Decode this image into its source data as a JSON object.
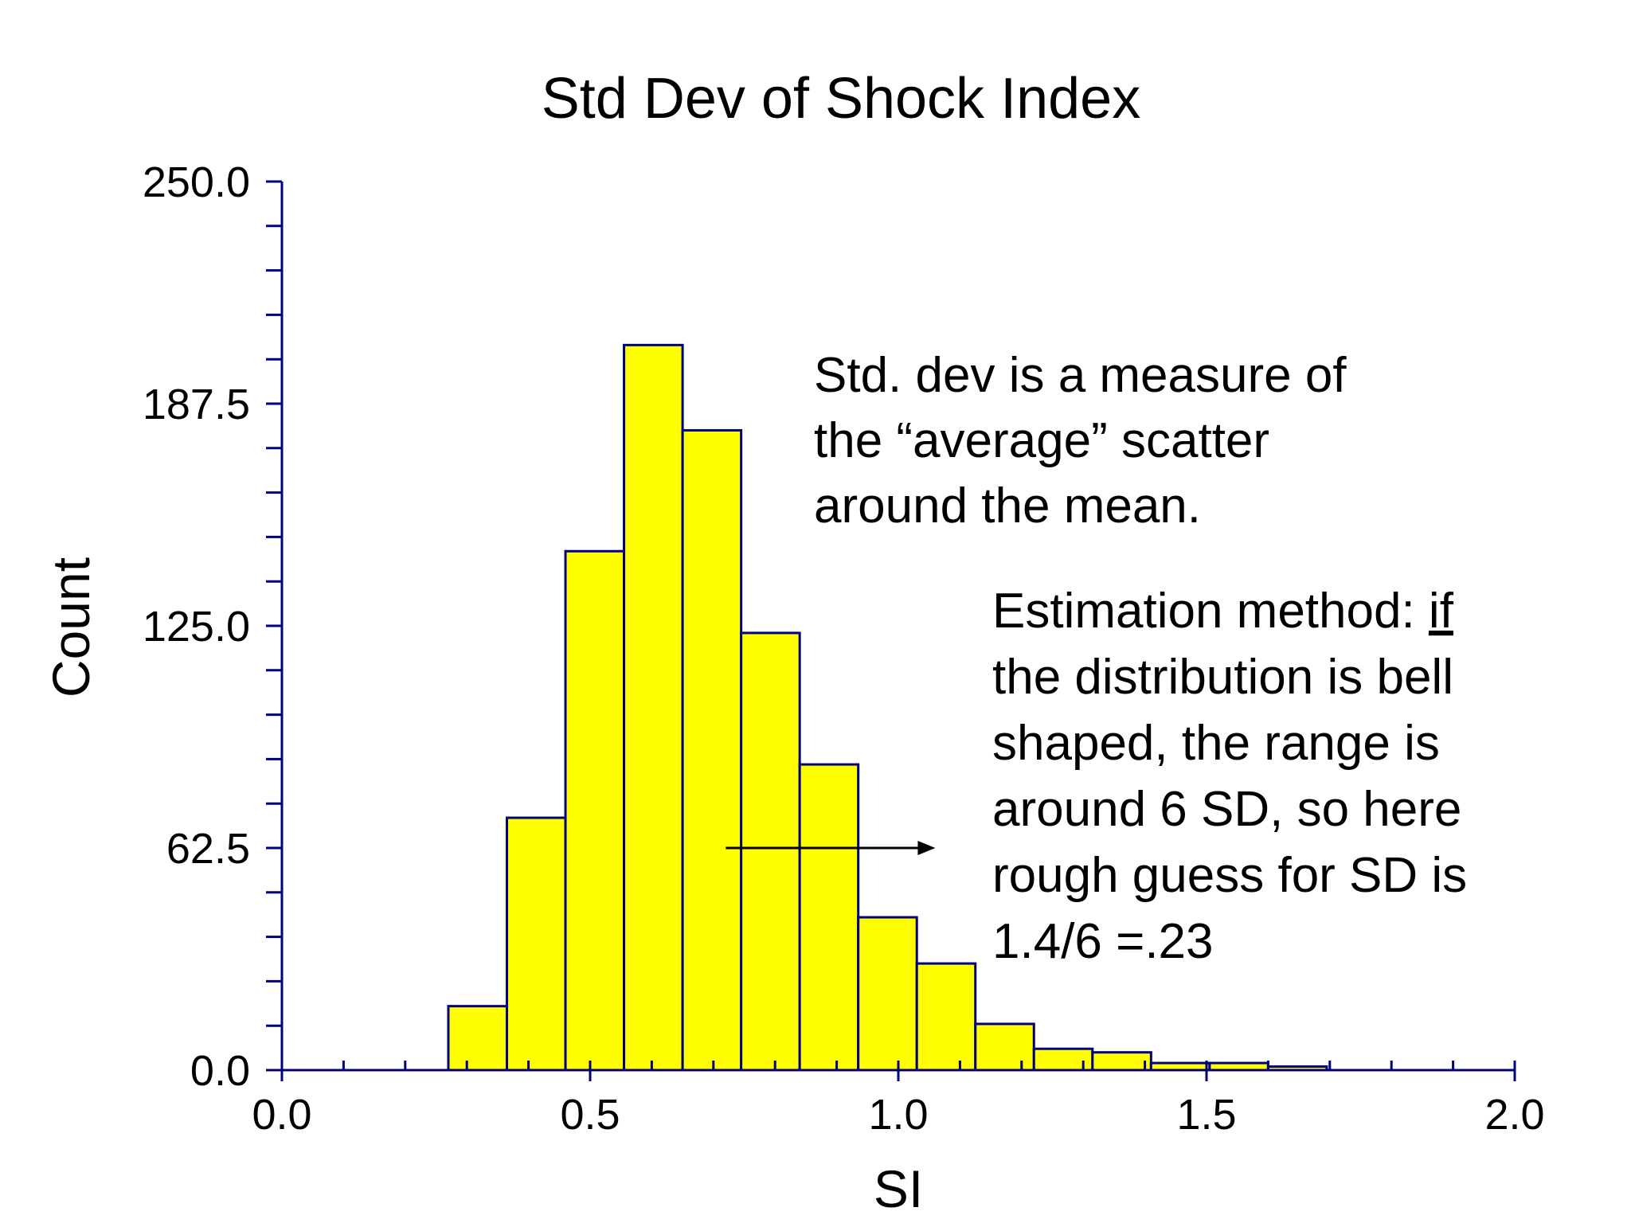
{
  "chart_data": {
    "type": "bar",
    "title": "Std Dev of Shock Index",
    "xlabel": "SI",
    "ylabel": "Count",
    "xlim": [
      0.0,
      2.0
    ],
    "ylim": [
      0.0,
      250.0
    ],
    "x_ticks": [
      "0.0",
      "0.5",
      "1.0",
      "1.5",
      "2.0"
    ],
    "y_ticks": [
      "0.0",
      "62.5",
      "125.0",
      "187.5",
      "250.0"
    ],
    "x_minor_step": 0.1,
    "y_minor_step": 12.5,
    "grid": false,
    "bins": [
      {
        "start": 0.27,
        "end": 0.365,
        "count": 18
      },
      {
        "start": 0.365,
        "end": 0.46,
        "count": 71
      },
      {
        "start": 0.46,
        "end": 0.555,
        "count": 146
      },
      {
        "start": 0.555,
        "end": 0.65,
        "count": 204
      },
      {
        "start": 0.65,
        "end": 0.745,
        "count": 180
      },
      {
        "start": 0.745,
        "end": 0.84,
        "count": 123
      },
      {
        "start": 0.84,
        "end": 0.935,
        "count": 86
      },
      {
        "start": 0.935,
        "end": 1.03,
        "count": 43
      },
      {
        "start": 1.03,
        "end": 1.125,
        "count": 30
      },
      {
        "start": 1.125,
        "end": 1.22,
        "count": 13
      },
      {
        "start": 1.22,
        "end": 1.315,
        "count": 6
      },
      {
        "start": 1.315,
        "end": 1.41,
        "count": 5
      },
      {
        "start": 1.41,
        "end": 1.505,
        "count": 2
      },
      {
        "start": 1.505,
        "end": 1.6,
        "count": 2
      },
      {
        "start": 1.6,
        "end": 1.695,
        "count": 1
      }
    ],
    "annotations": [
      {
        "lines": [
          "Std. dev is a measure of",
          "the “average” scatter",
          "around the mean."
        ]
      },
      {
        "lines": [
          {
            "parts": [
              {
                "text": "Estimation method: "
              },
              {
                "text": "if",
                "underline": true
              }
            ]
          },
          {
            "parts": [
              {
                "text": "the distribution is bell"
              }
            ]
          },
          {
            "parts": [
              {
                "text": "shaped, the range is"
              }
            ]
          },
          {
            "parts": [
              {
                "text": "around 6 SD, so here"
              }
            ]
          },
          {
            "parts": [
              {
                "text": "rough guess for SD is"
              }
            ]
          },
          {
            "parts": [
              {
                "text": "1.4/6 =.23"
              }
            ]
          }
        ]
      }
    ],
    "arrow": {
      "from_x": 0.72,
      "to_x": 1.06,
      "y": 62.5
    },
    "colors": {
      "bar_fill": "#ffff00",
      "bar_edge": "#000080",
      "axis": "#000080",
      "text": "#000000"
    }
  }
}
